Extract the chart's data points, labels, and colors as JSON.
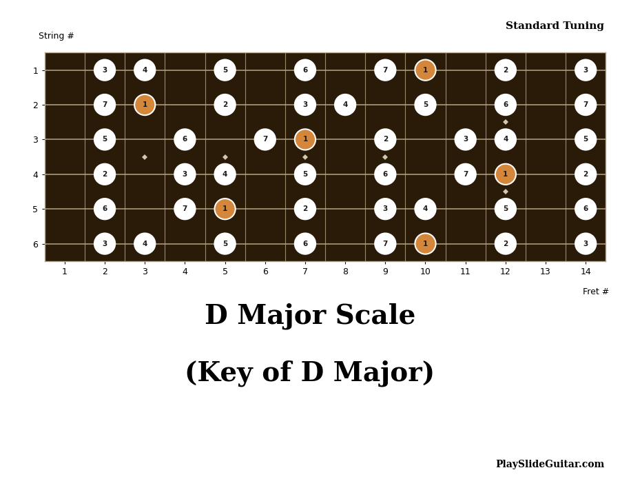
{
  "title_line1": "D Major Scale",
  "title_line2": "(Key of D Major)",
  "subtitle": "Standard Tuning",
  "watermark": "PlaySlideGuitar.com",
  "string_label": "String #",
  "fret_label": "Fret #",
  "fret_numbers": [
    1,
    2,
    3,
    4,
    5,
    6,
    7,
    8,
    9,
    10,
    11,
    12,
    13,
    14
  ],
  "num_strings": 6,
  "num_frets": 14,
  "fretboard_color": "#2a1a08",
  "string_color": "#b8a888",
  "fret_color": "#b8a888",
  "note_bg_white": "#ffffff",
  "note_bg_orange": "#d4873a",
  "note_text_color": "#1a1a1a",
  "dot_color": "#d0c8b0",
  "dot_frets": [
    3,
    5,
    7,
    9,
    12
  ],
  "notes": [
    {
      "string": 1,
      "fret": 2,
      "degree": "3",
      "root": false
    },
    {
      "string": 1,
      "fret": 3,
      "degree": "4",
      "root": false
    },
    {
      "string": 1,
      "fret": 5,
      "degree": "5",
      "root": false
    },
    {
      "string": 1,
      "fret": 7,
      "degree": "6",
      "root": false
    },
    {
      "string": 1,
      "fret": 9,
      "degree": "7",
      "root": false
    },
    {
      "string": 1,
      "fret": 10,
      "degree": "1",
      "root": true
    },
    {
      "string": 1,
      "fret": 12,
      "degree": "2",
      "root": false
    },
    {
      "string": 1,
      "fret": 14,
      "degree": "3",
      "root": false
    },
    {
      "string": 2,
      "fret": 2,
      "degree": "7",
      "root": false
    },
    {
      "string": 2,
      "fret": 3,
      "degree": "1",
      "root": true
    },
    {
      "string": 2,
      "fret": 5,
      "degree": "2",
      "root": false
    },
    {
      "string": 2,
      "fret": 7,
      "degree": "3",
      "root": false
    },
    {
      "string": 2,
      "fret": 8,
      "degree": "4",
      "root": false
    },
    {
      "string": 2,
      "fret": 10,
      "degree": "5",
      "root": false
    },
    {
      "string": 2,
      "fret": 12,
      "degree": "6",
      "root": false
    },
    {
      "string": 2,
      "fret": 14,
      "degree": "7",
      "root": false
    },
    {
      "string": 3,
      "fret": 2,
      "degree": "5",
      "root": false
    },
    {
      "string": 3,
      "fret": 4,
      "degree": "6",
      "root": false
    },
    {
      "string": 3,
      "fret": 6,
      "degree": "7",
      "root": false
    },
    {
      "string": 3,
      "fret": 7,
      "degree": "1",
      "root": true
    },
    {
      "string": 3,
      "fret": 9,
      "degree": "2",
      "root": false
    },
    {
      "string": 3,
      "fret": 11,
      "degree": "3",
      "root": false
    },
    {
      "string": 3,
      "fret": 12,
      "degree": "4",
      "root": false
    },
    {
      "string": 3,
      "fret": 14,
      "degree": "5",
      "root": false
    },
    {
      "string": 4,
      "fret": 2,
      "degree": "2",
      "root": false
    },
    {
      "string": 4,
      "fret": 4,
      "degree": "3",
      "root": false
    },
    {
      "string": 4,
      "fret": 5,
      "degree": "4",
      "root": false
    },
    {
      "string": 4,
      "fret": 7,
      "degree": "5",
      "root": false
    },
    {
      "string": 4,
      "fret": 9,
      "degree": "6",
      "root": false
    },
    {
      "string": 4,
      "fret": 11,
      "degree": "7",
      "root": false
    },
    {
      "string": 4,
      "fret": 12,
      "degree": "1",
      "root": true
    },
    {
      "string": 4,
      "fret": 14,
      "degree": "2",
      "root": false
    },
    {
      "string": 5,
      "fret": 2,
      "degree": "6",
      "root": false
    },
    {
      "string": 5,
      "fret": 4,
      "degree": "7",
      "root": false
    },
    {
      "string": 5,
      "fret": 5,
      "degree": "1",
      "root": true
    },
    {
      "string": 5,
      "fret": 7,
      "degree": "2",
      "root": false
    },
    {
      "string": 5,
      "fret": 9,
      "degree": "3",
      "root": false
    },
    {
      "string": 5,
      "fret": 10,
      "degree": "4",
      "root": false
    },
    {
      "string": 5,
      "fret": 12,
      "degree": "5",
      "root": false
    },
    {
      "string": 5,
      "fret": 14,
      "degree": "6",
      "root": false
    },
    {
      "string": 6,
      "fret": 2,
      "degree": "3",
      "root": false
    },
    {
      "string": 6,
      "fret": 3,
      "degree": "4",
      "root": false
    },
    {
      "string": 6,
      "fret": 5,
      "degree": "5",
      "root": false
    },
    {
      "string": 6,
      "fret": 7,
      "degree": "6",
      "root": false
    },
    {
      "string": 6,
      "fret": 9,
      "degree": "7",
      "root": false
    },
    {
      "string": 6,
      "fret": 10,
      "degree": "1",
      "root": true
    },
    {
      "string": 6,
      "fret": 12,
      "degree": "2",
      "root": false
    },
    {
      "string": 6,
      "fret": 14,
      "degree": "3",
      "root": false
    }
  ]
}
